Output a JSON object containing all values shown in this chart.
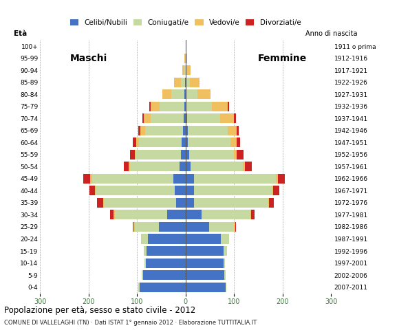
{
  "age_groups": [
    "0-4",
    "5-9",
    "10-14",
    "15-19",
    "20-24",
    "25-29",
    "30-34",
    "35-39",
    "40-44",
    "45-49",
    "50-54",
    "55-59",
    "60-64",
    "65-69",
    "70-74",
    "75-79",
    "80-84",
    "85-89",
    "90-94",
    "95-99",
    "100+"
  ],
  "birth_years": [
    "2007-2011",
    "2002-2006",
    "1997-2001",
    "1992-1996",
    "1987-1991",
    "1982-1986",
    "1977-1981",
    "1972-1976",
    "1967-1971",
    "1962-1966",
    "1957-1961",
    "1952-1956",
    "1947-1951",
    "1942-1946",
    "1937-1941",
    "1932-1936",
    "1927-1931",
    "1922-1926",
    "1917-1921",
    "1912-1916",
    "1911 o prima"
  ],
  "males": {
    "celibi": [
      95,
      88,
      82,
      80,
      78,
      55,
      38,
      20,
      22,
      25,
      12,
      10,
      8,
      5,
      4,
      2,
      2,
      1,
      0,
      0,
      0
    ],
    "coniugati": [
      2,
      2,
      2,
      6,
      13,
      50,
      108,
      148,
      162,
      168,
      103,
      93,
      88,
      78,
      68,
      52,
      28,
      8,
      2,
      0,
      0
    ],
    "vedovi": [
      0,
      0,
      0,
      0,
      0,
      2,
      2,
      2,
      2,
      4,
      2,
      2,
      5,
      10,
      14,
      18,
      18,
      14,
      4,
      2,
      0
    ],
    "divorziati": [
      0,
      0,
      0,
      0,
      0,
      2,
      7,
      12,
      12,
      14,
      10,
      10,
      8,
      5,
      3,
      2,
      0,
      0,
      0,
      0,
      0
    ]
  },
  "females": {
    "nubili": [
      82,
      80,
      78,
      78,
      72,
      48,
      33,
      18,
      18,
      18,
      10,
      8,
      5,
      5,
      3,
      2,
      2,
      1,
      0,
      0,
      0
    ],
    "coniugate": [
      2,
      2,
      3,
      8,
      18,
      52,
      100,
      152,
      160,
      168,
      108,
      92,
      88,
      82,
      68,
      52,
      22,
      8,
      2,
      0,
      0
    ],
    "vedove": [
      0,
      0,
      0,
      0,
      0,
      2,
      2,
      2,
      3,
      5,
      5,
      5,
      12,
      18,
      28,
      33,
      28,
      20,
      9,
      3,
      0
    ],
    "divorziate": [
      0,
      0,
      0,
      0,
      0,
      2,
      7,
      10,
      12,
      14,
      14,
      14,
      8,
      5,
      5,
      2,
      0,
      0,
      0,
      0,
      0
    ]
  },
  "colors": {
    "celibi_nubili": "#4472C4",
    "coniugati_e": "#C5D9A0",
    "vedovi_e": "#F0C060",
    "divorziati_e": "#CC2222"
  },
  "xlim": 300,
  "title": "Popolazione per età, sesso e stato civile - 2012",
  "subtitle": "COMUNE DI VALLELAGHI (TN) · Dati ISTAT 1° gennaio 2012 · Elaborazione TUTTITALIA.IT",
  "xlabel_left": "Maschi",
  "xlabel_right": "Femmine",
  "ylabel_left": "Età",
  "ylabel_right": "Anno di nascita",
  "background_color": "#FFFFFF",
  "grid_color": "#AAAAAA"
}
